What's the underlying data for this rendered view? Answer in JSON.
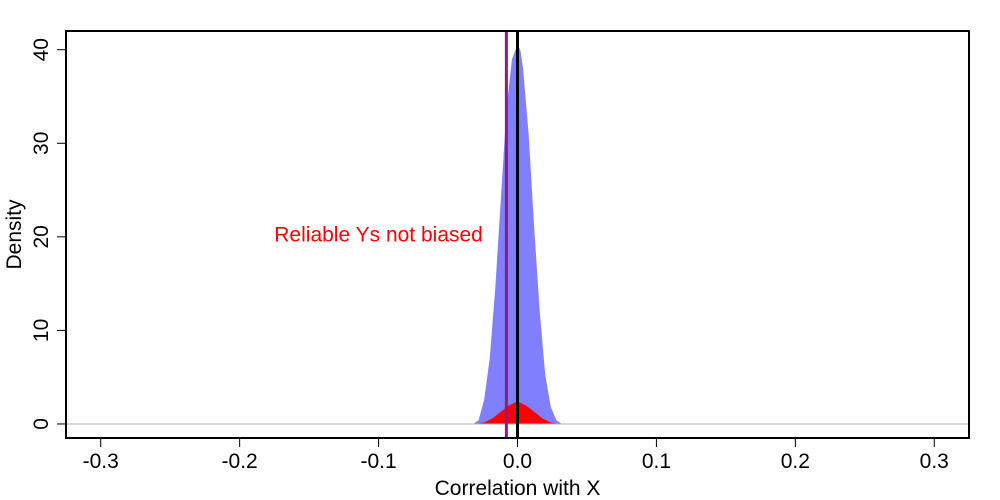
{
  "chart_data": {
    "type": "area",
    "title": "",
    "xlabel": "Correlation with X",
    "ylabel": "Density",
    "xlim": [
      -0.325,
      0.325
    ],
    "ylim": [
      -1.5,
      42
    ],
    "x_ticks": [
      -0.3,
      -0.2,
      -0.1,
      0.0,
      0.1,
      0.2,
      0.3
    ],
    "x_tick_labels": [
      "-0.3",
      "-0.2",
      "-0.1",
      "0.0",
      "0.1",
      "0.2",
      "0.3"
    ],
    "y_ticks": [
      0,
      10,
      20,
      30,
      40
    ],
    "y_tick_labels": [
      "0",
      "10",
      "20",
      "30",
      "40"
    ],
    "grid": false,
    "legend": "none",
    "baseline_y": 0,
    "series": [
      {
        "color": "#8080ff",
        "x": [
          -0.032,
          -0.028,
          -0.024,
          -0.02,
          -0.016,
          -0.012,
          -0.008,
          -0.004,
          0.0,
          0.002,
          0.004,
          0.008,
          0.012,
          0.016,
          0.02,
          0.024,
          0.028,
          0.032
        ],
        "y": [
          0,
          0.4,
          2.6,
          7.0,
          14.5,
          24.0,
          33.5,
          39.0,
          40.5,
          40.0,
          38.0,
          31.0,
          21.0,
          12.0,
          5.2,
          1.8,
          0.4,
          0
        ]
      },
      {
        "color": "#ff0000",
        "x": [
          -0.03,
          -0.024,
          -0.018,
          -0.012,
          -0.006,
          0.0,
          0.006,
          0.012,
          0.018,
          0.024,
          0.03
        ],
        "y": [
          0,
          0.15,
          0.6,
          1.3,
          2.0,
          2.4,
          2.0,
          1.3,
          0.6,
          0.15,
          0
        ]
      }
    ],
    "vlines": [
      {
        "x": 0.0,
        "color": "#000000"
      },
      {
        "x": -0.008,
        "color": "#8b1a8b"
      }
    ],
    "annotations": [
      {
        "text": "Reliable Ys not biased",
        "x": -0.1,
        "y": 19.5,
        "color": "#ff0000"
      }
    ]
  }
}
